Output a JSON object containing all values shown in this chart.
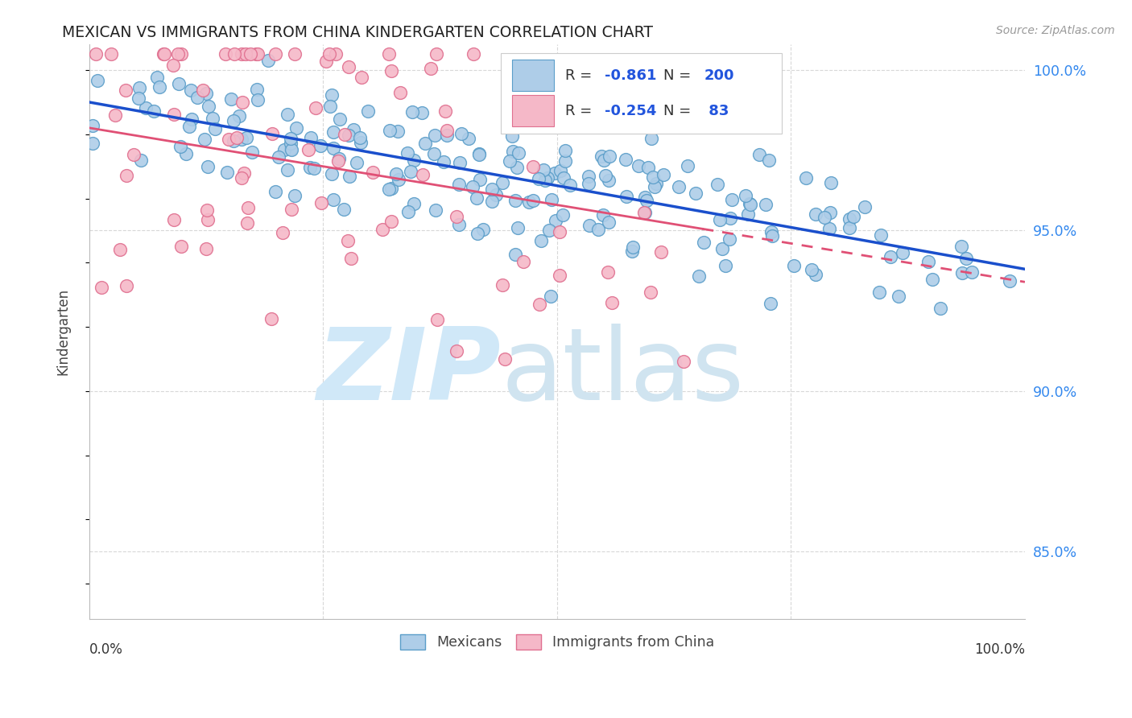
{
  "title": "MEXICAN VS IMMIGRANTS FROM CHINA KINDERGARTEN CORRELATION CHART",
  "source": "Source: ZipAtlas.com",
  "ylabel": "Kindergarten",
  "right_yticks": [
    0.85,
    0.9,
    0.95,
    1.0
  ],
  "right_yticklabels": [
    "85.0%",
    "90.0%",
    "95.0%",
    "100.0%"
  ],
  "xmin": 0.0,
  "xmax": 1.0,
  "ymin": 0.829,
  "ymax": 1.008,
  "blue_color": "#aecde8",
  "blue_edge": "#5b9ec9",
  "pink_color": "#f5b8c8",
  "pink_edge": "#e07090",
  "blue_line_color": "#1a4fcc",
  "pink_line_color": "#e05075",
  "legend_R_blue": "-0.861",
  "legend_N_blue": "200",
  "legend_R_pink": "-0.254",
  "legend_N_pink": "83",
  "watermark_zip": "ZIP",
  "watermark_atlas": "atlas",
  "watermark_color_zip": "#d0e8f8",
  "watermark_color_atlas": "#d0e4f0",
  "grid_color": "#d8d8d8",
  "background_color": "#ffffff",
  "blue_intercept": 0.99,
  "blue_slope": -0.052,
  "pink_intercept": 0.982,
  "pink_slope": -0.048,
  "blue_noise": 0.01,
  "pink_noise": 0.03,
  "seed_blue": 42,
  "seed_pink": 99,
  "legend_value_color": "#2255dd",
  "legend_label_color": "#333333",
  "right_tick_color": "#3388ee"
}
